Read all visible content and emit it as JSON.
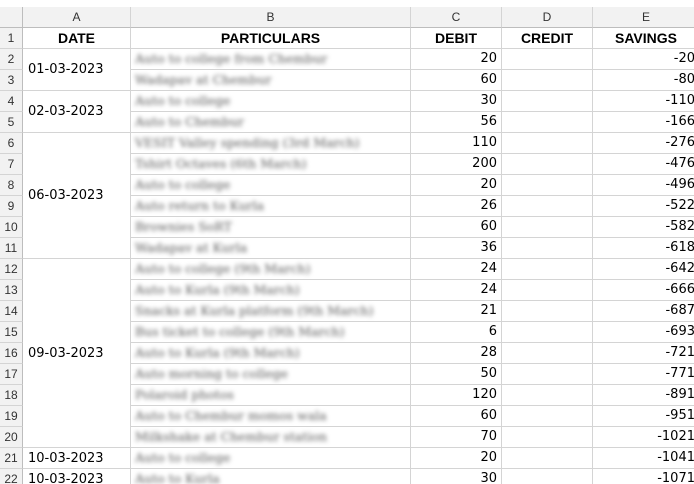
{
  "columns": [
    "A",
    "B",
    "C",
    "D",
    "E"
  ],
  "headers": {
    "date": "DATE",
    "particulars": "PARTICULARS",
    "debit": "DEBIT",
    "credit": "CREDIT",
    "savings": "SAVINGS"
  },
  "row_numbers": [
    "1",
    "2",
    "3",
    "4",
    "5",
    "6",
    "7",
    "8",
    "9",
    "10",
    "11",
    "12",
    "13",
    "14",
    "15",
    "16",
    "17",
    "18",
    "19",
    "20",
    "21",
    "22"
  ],
  "date_groups": [
    {
      "label": "01-03-2023",
      "start": 1,
      "span": 2
    },
    {
      "label": "02-03-2023",
      "start": 3,
      "span": 2
    },
    {
      "label": "06-03-2023",
      "start": 5,
      "span": 6
    },
    {
      "label": "09-03-2023",
      "start": 11,
      "span": 9
    },
    {
      "label": "10-03-2023",
      "start": 20,
      "span": 1
    },
    {
      "label": "10-03-2023",
      "start": 21,
      "span": 1
    }
  ],
  "rows": [
    {
      "particular": "Auto to college from Chembur",
      "debit": "20",
      "credit": "",
      "savings": "-20"
    },
    {
      "particular": "Wadapav at Chembur",
      "debit": "60",
      "credit": "",
      "savings": "-80"
    },
    {
      "particular": "Auto to college",
      "debit": "30",
      "credit": "",
      "savings": "-110"
    },
    {
      "particular": "Auto to Chembur",
      "debit": "56",
      "credit": "",
      "savings": "-166"
    },
    {
      "particular": "VESIT Valley spending (3rd March)",
      "debit": "110",
      "credit": "",
      "savings": "-276"
    },
    {
      "particular": "Tshirt Octaves (6th March)",
      "debit": "200",
      "credit": "",
      "savings": "-476"
    },
    {
      "particular": "Auto to college",
      "debit": "20",
      "credit": "",
      "savings": "-496"
    },
    {
      "particular": "Auto return to Kurla",
      "debit": "26",
      "credit": "",
      "savings": "-522"
    },
    {
      "particular": "Brownies SoRT",
      "debit": "60",
      "credit": "",
      "savings": "-582"
    },
    {
      "particular": "Wadapav at Kurla",
      "debit": "36",
      "credit": "",
      "savings": "-618"
    },
    {
      "particular": "Auto to college (9th March)",
      "debit": "24",
      "credit": "",
      "savings": "-642"
    },
    {
      "particular": "Auto to Kurla (9th March)",
      "debit": "24",
      "credit": "",
      "savings": "-666"
    },
    {
      "particular": "Snacks at Kurla platform (9th March)",
      "debit": "21",
      "credit": "",
      "savings": "-687"
    },
    {
      "particular": "Bus ticket to college (9th March)",
      "debit": "6",
      "credit": "",
      "savings": "-693"
    },
    {
      "particular": "Auto to Kurla (9th March)",
      "debit": "28",
      "credit": "",
      "savings": "-721"
    },
    {
      "particular": "Auto morning to college",
      "debit": "50",
      "credit": "",
      "savings": "-771"
    },
    {
      "particular": "Polaroid photos",
      "debit": "120",
      "credit": "",
      "savings": "-891"
    },
    {
      "particular": "Auto to Chembur momos wala",
      "debit": "60",
      "credit": "",
      "savings": "-951"
    },
    {
      "particular": "Milkshake at Chembur station",
      "debit": "70",
      "credit": "",
      "savings": "-1021"
    },
    {
      "particular": "Auto to college",
      "debit": "20",
      "credit": "",
      "savings": "-1041"
    },
    {
      "particular": "Auto to Kurla",
      "debit": "30",
      "credit": "",
      "savings": "-1071"
    }
  ]
}
